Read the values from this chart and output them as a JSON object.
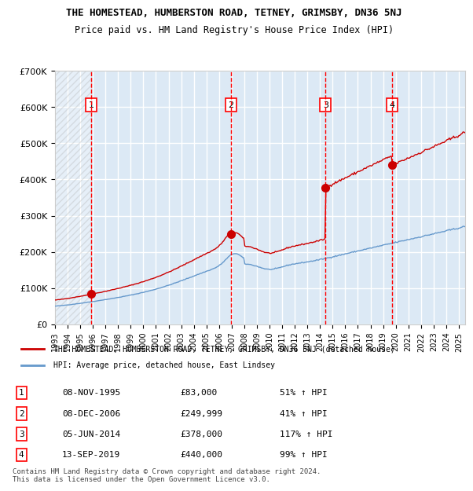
{
  "title1": "THE HOMESTEAD, HUMBERSTON ROAD, TETNEY, GRIMSBY, DN36 5NJ",
  "title2": "Price paid vs. HM Land Registry's House Price Index (HPI)",
  "ylabel": "",
  "xlim_start": 1993.0,
  "xlim_end": 2025.5,
  "ylim_min": 0,
  "ylim_max": 700000,
  "yticks": [
    0,
    100000,
    200000,
    300000,
    400000,
    500000,
    600000,
    700000
  ],
  "ytick_labels": [
    "£0",
    "£100K",
    "£200K",
    "£300K",
    "£400K",
    "£500K",
    "£600K",
    "£700K"
  ],
  "xticks": [
    1993,
    1994,
    1995,
    1996,
    1997,
    1998,
    1999,
    2000,
    2001,
    2002,
    2003,
    2004,
    2005,
    2006,
    2007,
    2008,
    2009,
    2010,
    2011,
    2012,
    2013,
    2014,
    2015,
    2016,
    2017,
    2018,
    2019,
    2020,
    2021,
    2022,
    2023,
    2024,
    2025
  ],
  "hpi_color": "#6699cc",
  "price_color": "#cc0000",
  "bg_color": "#dce9f5",
  "hatch_color": "#b0c4d8",
  "grid_color": "#ffffff",
  "legend_box_color": "#cc0000",
  "sale_points": [
    {
      "year": 1995.86,
      "value": 83000,
      "label": "1"
    },
    {
      "year": 2006.93,
      "value": 249999,
      "label": "2"
    },
    {
      "year": 2014.43,
      "value": 378000,
      "label": "3"
    },
    {
      "year": 2019.7,
      "value": 440000,
      "label": "4"
    }
  ],
  "table_rows": [
    {
      "num": "1",
      "date": "08-NOV-1995",
      "price": "£83,000",
      "hpi": "51% ↑ HPI"
    },
    {
      "num": "2",
      "date": "08-DEC-2006",
      "price": "£249,999",
      "hpi": "41% ↑ HPI"
    },
    {
      "num": "3",
      "date": "05-JUN-2014",
      "price": "£378,000",
      "hpi": "117% ↑ HPI"
    },
    {
      "num": "4",
      "date": "13-SEP-2019",
      "price": "£440,000",
      "hpi": "99% ↑ HPI"
    }
  ],
  "legend_line1": "THE HOMESTEAD, HUMBERSTON ROAD, TETNEY, GRIMSBY, DN36 5NJ (detached house)",
  "legend_line2": "HPI: Average price, detached house, East Lindsey",
  "footer": "Contains HM Land Registry data © Crown copyright and database right 2024.\nThis data is licensed under the Open Government Licence v3.0."
}
